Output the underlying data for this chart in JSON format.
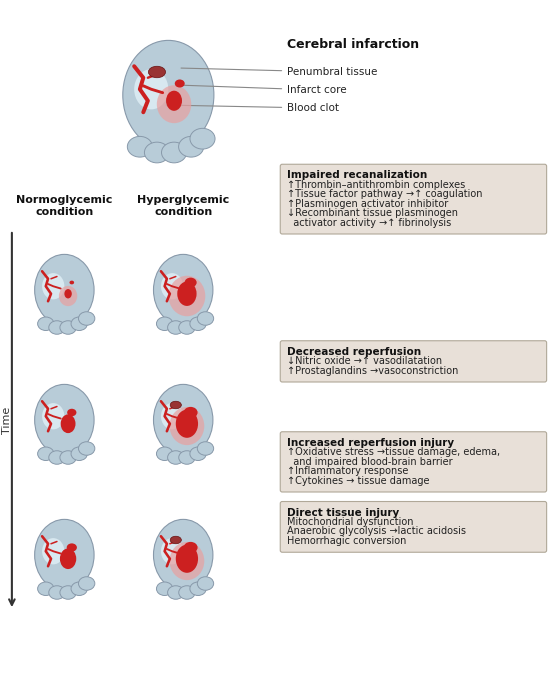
{
  "bg_color": "#ffffff",
  "fig_width": 5.58,
  "fig_height": 6.86,
  "dpi": 100,
  "title_brain": "Cerebral infarction",
  "label_penumbral": "Penumbral tissue",
  "label_infarct": "Infarct core",
  "label_blood": "Blood clot",
  "label_normo": "Normoglycemic\ncondition",
  "label_hyper": "Hyperglycemic\ncondition",
  "label_time": "Time",
  "box1_title": "Impaired recanalization",
  "box1_lines": [
    "↑Thrombin–antithrombin complexes",
    "↑Tissue factor pathway →↑ coagulation",
    "↑Plasminogen activator inhibitor",
    "↓Recombinant tissue plasminogen",
    "  activator activity →↑ fibrinolysis"
  ],
  "box2_title": "Decreased reperfusion",
  "box2_lines": [
    "↓Nitric oxide →↑ vasodilatation",
    "↑Prostaglandins →vasoconstriction"
  ],
  "box3_title": "Increased reperfusion injury",
  "box3_lines": [
    "↑Oxidative stress →tissue damage, edema,",
    "  and impaired blood-brain barrier",
    "↑Inflammatory response",
    "↑Cytokines → tissue damage"
  ],
  "box4_title": "Direct tissue injury",
  "box4_lines": [
    "Mitochondrial dysfunction",
    "Anaerobic glycolysis →lactic acidosis",
    "Hemorrhagic conversion"
  ],
  "box_bg": "#e8e0d8",
  "box_edge": "#b0a898",
  "brain_outer": "#b8ccd8",
  "brain_penumbral": "#e8a0a0",
  "brain_infarct": "#cc2020",
  "brain_vessel": "#cc2020"
}
